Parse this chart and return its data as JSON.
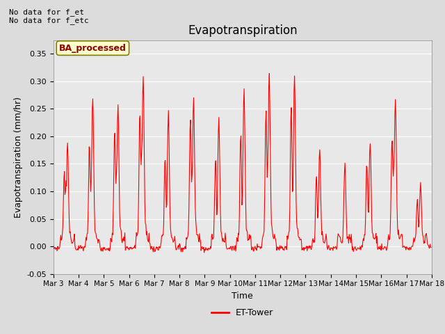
{
  "title": "Evapotranspiration",
  "xlabel": "Time",
  "ylabel": "Evapotranspiration (mm/hr)",
  "ylim": [
    -0.05,
    0.375
  ],
  "yticks": [
    -0.05,
    0.0,
    0.05,
    0.1,
    0.15,
    0.2,
    0.25,
    0.3,
    0.35
  ],
  "text_no_data": [
    "No data for f_et",
    "No data for f_etc"
  ],
  "legend_label": "ET-Tower",
  "legend_box_label": "BA_processed",
  "line_color": "red",
  "bg_color": "#dcdcdc",
  "plot_bg_color": "#e8e8e8",
  "grid_color": "#ffffff",
  "x_tick_labels": [
    "Mar 3",
    "Mar 4",
    "Mar 5",
    "Mar 6",
    "Mar 7",
    "Mar 8",
    "Mar 9",
    "Mar 10",
    "Mar 11",
    "Mar 12",
    "Mar 13",
    "Mar 14",
    "Mar 15",
    "Mar 16",
    "Mar 17",
    "Mar 18"
  ],
  "num_days": 15,
  "points_per_day": 48,
  "daily_peaks_main": [
    0.185,
    0.27,
    0.26,
    0.31,
    0.245,
    0.27,
    0.235,
    0.285,
    0.315,
    0.315,
    0.175,
    0.15,
    0.195,
    0.27,
    0.115
  ],
  "daily_peaks_secondary": [
    0.135,
    0.185,
    0.215,
    0.245,
    0.165,
    0.235,
    0.155,
    0.21,
    0.245,
    0.25,
    0.13,
    0.0,
    0.155,
    0.2,
    0.085
  ],
  "daily_peaks_tertiary": [
    0.13,
    0.12,
    0.14,
    0.175,
    0.08,
    0.145,
    0.065,
    0.065,
    0.155,
    0.065,
    0.0,
    0.0,
    0.06,
    0.155,
    0.0
  ]
}
